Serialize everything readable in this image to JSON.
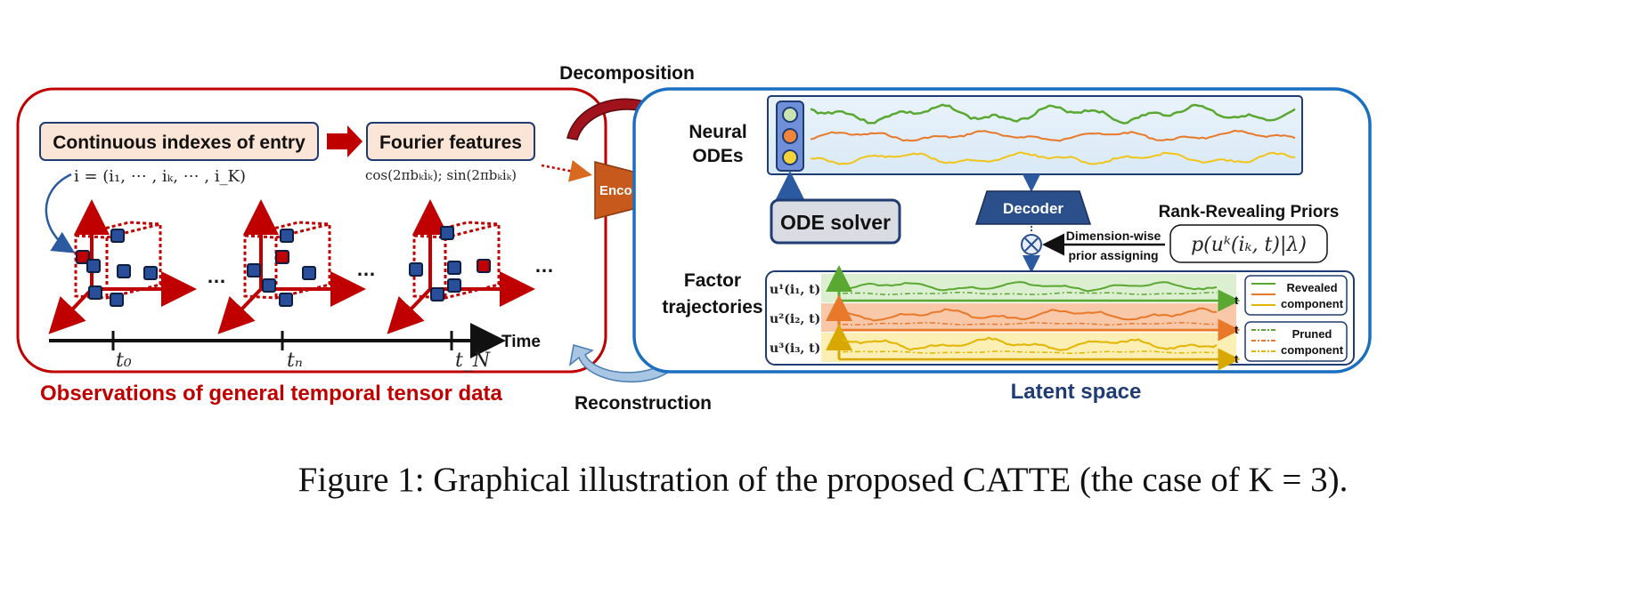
{
  "observations": {
    "index_box": "Continuous indexes of entry",
    "fourier_box": "Fourier features",
    "index_formula": "i = (i₁, ⋯ , iₖ, ⋯ , i_K)",
    "fourier_formula": "cos(2πbₖiₖ); sin(2πbₖiₖ)",
    "ellipsis": "…",
    "time_label": "Time",
    "ticks": [
      "t₀",
      "tₙ",
      "t_N"
    ],
    "title": "Observations of general temporal tensor data"
  },
  "center": {
    "decomposition": "Decomposition",
    "reconstruction": "Reconstruction",
    "encoder": "Encoder"
  },
  "latent": {
    "neural_odes_line1": "Neural",
    "neural_odes_line2": "ODEs",
    "ode_solver": "ODE solver",
    "decoder": "Decoder",
    "priors_title": "Rank-Revealing Priors",
    "prior_formula": "p(uᵏ(iₖ, t)|λ)",
    "assign_line1": "Dimension-wise",
    "assign_line2": "prior assigning",
    "factor_line1": "Factor",
    "factor_line2": "trajectories",
    "factor_labels": [
      "u¹(i₁, t)",
      "u²(i₂, t)",
      "u³(i₃, t)"
    ],
    "axis_t": "t",
    "legend_revealed_1": "Revealed",
    "legend_revealed_2": "component",
    "legend_pruned_1": "Pruned",
    "legend_pruned_2": "component",
    "title": "Latent space"
  },
  "colors": {
    "red": "#c00000",
    "blue": "#1a6fc0",
    "navy": "#1f3c73",
    "green": "#5aa832",
    "orange": "#e8782a",
    "yellow": "#f0c419",
    "encoder": "#c8591c"
  },
  "caption": {
    "prefix": "Figure 1: Graphical illustration of the proposed ",
    "model": "CATTE",
    "suffix": " (the case of K = 3)."
  }
}
